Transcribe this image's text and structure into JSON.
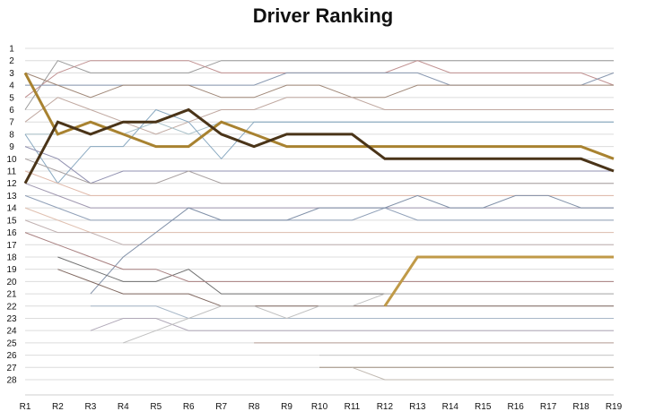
{
  "chart_data": {
    "type": "line",
    "title": "Driver Ranking",
    "xlabel": "",
    "ylabel": "",
    "categories": [
      "R1",
      "R2",
      "R3",
      "R4",
      "R5",
      "R6",
      "R7",
      "R8",
      "R9",
      "R10",
      "R11",
      "R12",
      "R13",
      "R14",
      "R15",
      "R16",
      "R17",
      "R18",
      "R19"
    ],
    "y_ticks": [
      1,
      2,
      3,
      4,
      5,
      6,
      7,
      8,
      9,
      10,
      11,
      12,
      13,
      14,
      15,
      16,
      17,
      18,
      19,
      20,
      21,
      22,
      23,
      24,
      25,
      26,
      27,
      28
    ],
    "ylim": [
      28,
      1
    ],
    "y_inverted": true,
    "grid": "horizontal",
    "legend": "none",
    "series": [
      {
        "values": [
          6,
          2,
          3,
          3,
          3,
          3,
          2,
          2,
          2,
          2,
          2,
          2,
          2,
          2,
          2,
          2,
          2,
          2,
          2
        ],
        "color": "#9a9a9a",
        "width": 1
      },
      {
        "values": [
          5,
          3,
          2,
          2,
          2,
          2,
          3,
          3,
          3,
          3,
          3,
          3,
          2,
          3,
          3,
          3,
          3,
          3,
          4
        ],
        "color": "#c09090",
        "width": 1
      },
      {
        "values": [
          4,
          4,
          4,
          4,
          4,
          4,
          4,
          4,
          3,
          3,
          3,
          3,
          3,
          4,
          4,
          4,
          4,
          4,
          3
        ],
        "color": "#8898b0",
        "width": 1
      },
      {
        "values": [
          3,
          4,
          5,
          4,
          4,
          4,
          5,
          5,
          4,
          4,
          5,
          5,
          4,
          4,
          4,
          4,
          4,
          4,
          4
        ],
        "color": "#a08878",
        "width": 1
      },
      {
        "values": [
          7,
          5,
          6,
          7,
          8,
          7,
          6,
          6,
          5,
          5,
          5,
          6,
          6,
          6,
          6,
          6,
          6,
          6,
          6
        ],
        "color": "#c0a8a0",
        "width": 1
      },
      {
        "values": [
          8,
          8,
          7,
          8,
          7,
          8,
          7,
          7,
          7,
          7,
          7,
          7,
          7,
          7,
          7,
          7,
          7,
          7,
          7
        ],
        "color": "#a8c0c8",
        "width": 1
      },
      {
        "values": [
          8,
          12,
          9,
          9,
          6,
          7,
          10,
          7,
          7,
          7,
          7,
          7,
          7,
          7,
          7,
          7,
          7,
          7,
          7
        ],
        "color": "#88a8c0",
        "width": 1
      },
      {
        "values": [
          9,
          10,
          12,
          11,
          11,
          11,
          11,
          11,
          11,
          11,
          11,
          11,
          11,
          11,
          11,
          11,
          11,
          11,
          11
        ],
        "color": "#9090b0",
        "width": 1
      },
      {
        "values": [
          10,
          11,
          12,
          12,
          12,
          11,
          12,
          12,
          12,
          12,
          12,
          12,
          12,
          12,
          12,
          12,
          12,
          12,
          12
        ],
        "color": "#a8a0a0",
        "width": 1
      },
      {
        "values": [
          11,
          12,
          13,
          13,
          13,
          13,
          13,
          13,
          13,
          13,
          13,
          13,
          13,
          13,
          13,
          13,
          13,
          13,
          13
        ],
        "color": "#e0b8a8",
        "width": 1
      },
      {
        "values": [
          12,
          13,
          14,
          14,
          14,
          14,
          14,
          14,
          14,
          14,
          14,
          14,
          14,
          14,
          14,
          14,
          14,
          14,
          14
        ],
        "color": "#a098b0",
        "width": 1
      },
      {
        "values": [
          13,
          14,
          15,
          15,
          15,
          15,
          15,
          15,
          15,
          15,
          15,
          14,
          15,
          15,
          15,
          15,
          15,
          15,
          15
        ],
        "color": "#90a0b8",
        "width": 1
      },
      {
        "values": [
          14,
          15,
          16,
          16,
          16,
          16,
          16,
          16,
          16,
          16,
          16,
          16,
          16,
          16,
          16,
          16,
          16,
          16,
          16
        ],
        "color": "#e0c0b0",
        "width": 1
      },
      {
        "values": [
          15,
          16,
          16,
          17,
          17,
          17,
          17,
          17,
          17,
          17,
          17,
          17,
          17,
          17,
          17,
          17,
          17,
          17,
          17
        ],
        "color": "#c0b0b0",
        "width": 1
      },
      {
        "values": [
          null,
          null,
          21,
          18,
          16,
          14,
          15,
          15,
          15,
          14,
          14,
          14,
          13,
          14,
          14,
          13,
          13,
          14,
          14
        ],
        "color": "#8090a8",
        "width": 1
      },
      {
        "values": [
          null,
          18,
          19,
          20,
          20,
          19,
          21,
          21,
          21,
          21,
          21,
          21,
          21,
          21,
          21,
          21,
          21,
          21,
          21
        ],
        "color": "#707070",
        "width": 1
      },
      {
        "values": [
          null,
          19,
          20,
          21,
          21,
          21,
          22,
          22,
          22,
          22,
          22,
          22,
          22,
          22,
          22,
          22,
          22,
          22,
          22
        ],
        "color": "#806860",
        "width": 1
      },
      {
        "values": [
          16,
          17,
          18,
          19,
          19,
          20,
          20,
          20,
          20,
          20,
          20,
          20,
          20,
          20,
          20,
          20,
          20,
          20,
          20
        ],
        "color": "#a88080",
        "width": 1
      },
      {
        "values": [
          null,
          null,
          22,
          22,
          22,
          23,
          23,
          23,
          23,
          23,
          23,
          23,
          23,
          23,
          23,
          23,
          23,
          23,
          23
        ],
        "color": "#a8b8c8",
        "width": 1
      },
      {
        "values": [
          null,
          null,
          24,
          23,
          23,
          24,
          24,
          24,
          24,
          24,
          24,
          24,
          24,
          24,
          24,
          24,
          24,
          24,
          24
        ],
        "color": "#b0a8b8",
        "width": 1
      },
      {
        "values": [
          null,
          null,
          null,
          25,
          24,
          23,
          22,
          22,
          23,
          22,
          22,
          21,
          21,
          21,
          21,
          21,
          21,
          21,
          21
        ],
        "color": "#c0c0c0",
        "width": 1
      },
      {
        "values": [
          null,
          null,
          null,
          null,
          null,
          null,
          null,
          25,
          25,
          25,
          25,
          25,
          25,
          25,
          25,
          25,
          25,
          25,
          25
        ],
        "color": "#b8a098",
        "width": 1
      },
      {
        "values": [
          null,
          null,
          null,
          null,
          null,
          null,
          null,
          null,
          null,
          26,
          26,
          26,
          26,
          26,
          26,
          26,
          26,
          26,
          26
        ],
        "color": "#c8c8c8",
        "width": 1
      },
      {
        "values": [
          null,
          null,
          null,
          null,
          null,
          null,
          null,
          null,
          null,
          27,
          27,
          27,
          27,
          27,
          27,
          27,
          27,
          27,
          27
        ],
        "color": "#a09080",
        "width": 1
      },
      {
        "values": [
          null,
          null,
          null,
          null,
          null,
          null,
          null,
          null,
          null,
          null,
          27,
          28,
          28,
          28,
          28,
          28,
          28,
          28,
          28
        ],
        "color": "#c0b8b0",
        "width": 1
      },
      {
        "values": [
          null,
          null,
          null,
          null,
          null,
          null,
          null,
          null,
          null,
          null,
          null,
          22,
          18,
          18,
          18,
          18,
          18,
          18,
          18
        ],
        "color": "#c09a48",
        "width": 3
      },
      {
        "values": [
          3,
          8,
          7,
          8,
          9,
          9,
          7,
          8,
          9,
          9,
          9,
          9,
          9,
          9,
          9,
          9,
          9,
          9,
          10
        ],
        "color": "#a88230",
        "width": 3
      },
      {
        "values": [
          12,
          7,
          8,
          7,
          7,
          6,
          8,
          9,
          8,
          8,
          8,
          10,
          10,
          10,
          10,
          10,
          10,
          10,
          11
        ],
        "color": "#4a3418",
        "width": 3
      }
    ]
  }
}
